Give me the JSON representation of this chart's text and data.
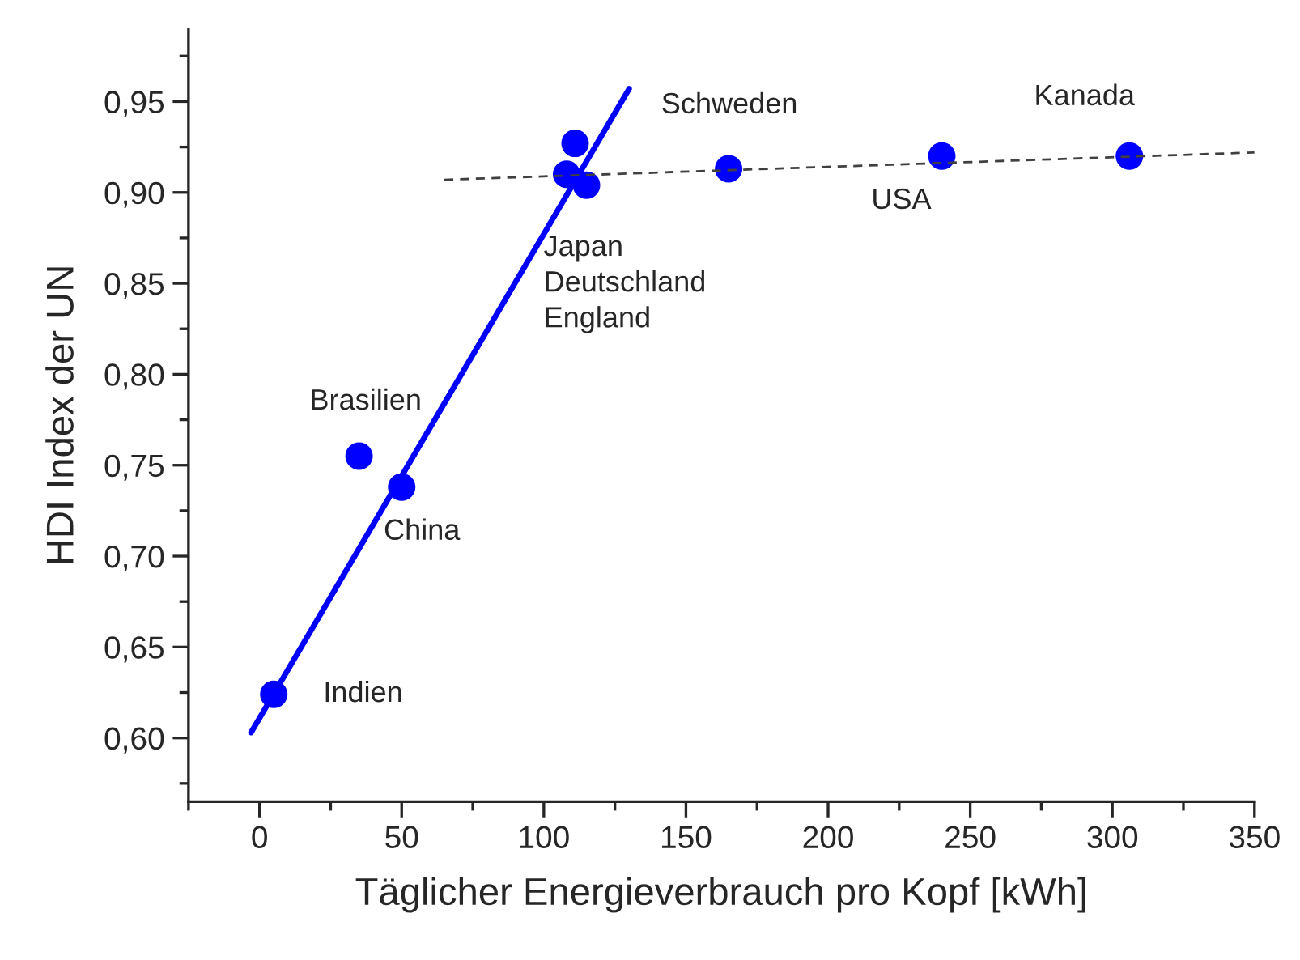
{
  "chart_data": {
    "type": "scatter",
    "xlabel": "Täglicher Energieverbrauch pro Kopf [kWh]",
    "ylabel": "HDI Index der UN",
    "xlim": [
      -25,
      350
    ],
    "ylim": [
      0.565,
      0.99
    ],
    "xticks": [
      0,
      50,
      100,
      150,
      200,
      250,
      300,
      350
    ],
    "yticks": [
      {
        "value": 0.6,
        "label": "0,60"
      },
      {
        "value": 0.65,
        "label": "0,65"
      },
      {
        "value": 0.7,
        "label": "0,70"
      },
      {
        "value": 0.75,
        "label": "0,75"
      },
      {
        "value": 0.8,
        "label": "0,80"
      },
      {
        "value": 0.85,
        "label": "0,85"
      },
      {
        "value": 0.9,
        "label": "0,90"
      },
      {
        "value": 0.95,
        "label": "0,95"
      }
    ],
    "grid": false,
    "legend": false,
    "series": [
      {
        "color": "#0000ff",
        "marker": "circle",
        "x": [
          5,
          35,
          50,
          108,
          111,
          115,
          165,
          240,
          306
        ],
        "values": [
          0.624,
          0.755,
          0.738,
          0.91,
          0.927,
          0.904,
          0.913,
          0.92,
          0.92
        ]
      },
      {
        "type": "line",
        "color": "#0000ff",
        "line_style": "solid",
        "marker": "none",
        "x": [
          -3,
          130
        ],
        "values": [
          0.603,
          0.957
        ]
      },
      {
        "type": "line",
        "color": "#404040",
        "line_style": "dashed",
        "marker": "none",
        "x": [
          65,
          350
        ],
        "values": [
          0.907,
          0.922
        ]
      }
    ],
    "annotations": [
      {
        "text": "Indien",
        "x": 5,
        "y": 0.624
      },
      {
        "text": "Brasilien",
        "x": 35,
        "y": 0.755
      },
      {
        "text": "China",
        "x": 50,
        "y": 0.738
      },
      {
        "text": "Japan\nDeutschland\nEngland",
        "x": 111,
        "y": 0.904
      },
      {
        "text": "Schweden",
        "x": 165,
        "y": 0.913
      },
      {
        "text": "USA",
        "x": 240,
        "y": 0.92
      },
      {
        "text": "Kanada",
        "x": 306,
        "y": 0.92
      }
    ]
  }
}
